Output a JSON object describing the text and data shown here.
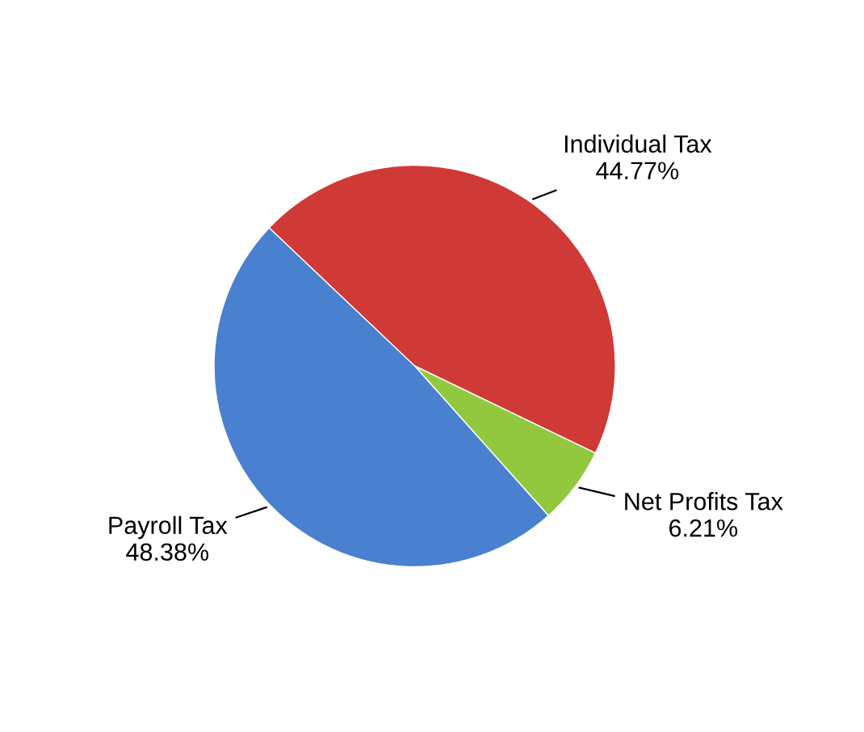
{
  "chart_data": {
    "type": "pie",
    "categories": [
      "Individual Tax",
      "Net Profits Tax",
      "Payroll Tax"
    ],
    "values": [
      44.77,
      6.21,
      48.38
    ],
    "colors": [
      "#cf3a36",
      "#92c83e",
      "#4a80d0"
    ],
    "value_labels": [
      "44.77%",
      "6.21%",
      "48.38%"
    ]
  }
}
